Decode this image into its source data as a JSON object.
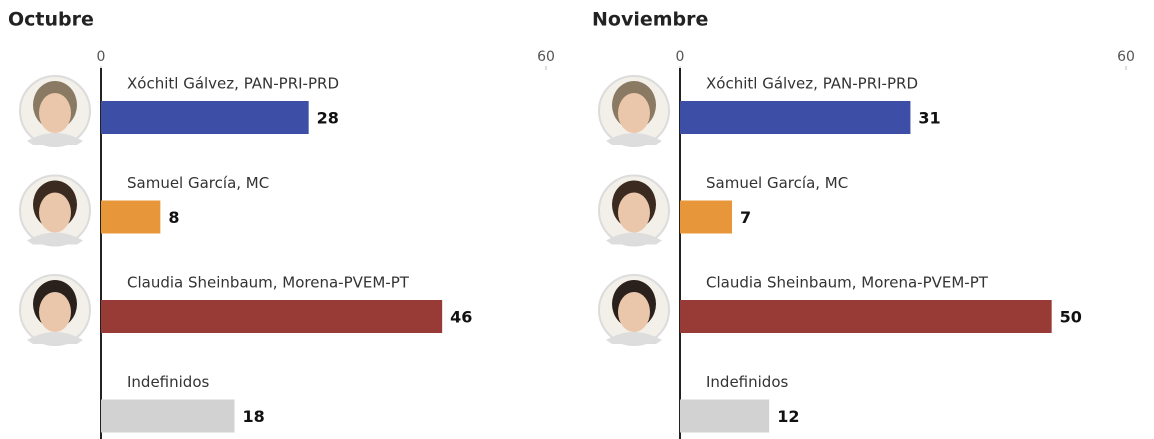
{
  "chart_data": [
    {
      "type": "bar",
      "orientation": "horizontal",
      "title": "Octubre",
      "categories": [
        "Xóchitl Gálvez, PAN-PRI-PRD",
        "Samuel García, MC",
        "Claudia Sheinbaum, Morena-PVEM-PT",
        "Indefinidos"
      ],
      "values": [
        28,
        8,
        46,
        18
      ],
      "colors": [
        "#3c4ea6",
        "#e8963a",
        "#983a36",
        "#d2d2d2"
      ],
      "xlim": [
        0,
        60
      ],
      "xticks": [
        0,
        60
      ]
    },
    {
      "type": "bar",
      "orientation": "horizontal",
      "title": "Noviembre",
      "categories": [
        "Xóchitl Gálvez, PAN-PRI-PRD",
        "Samuel García, MC",
        "Claudia Sheinbaum, Morena-PVEM-PT",
        "Indefinidos"
      ],
      "values": [
        31,
        7,
        50,
        12
      ],
      "colors": [
        "#3c4ea6",
        "#e8963a",
        "#983a36",
        "#d2d2d2"
      ],
      "xlim": [
        0,
        60
      ],
      "xticks": [
        0,
        60
      ]
    }
  ]
}
